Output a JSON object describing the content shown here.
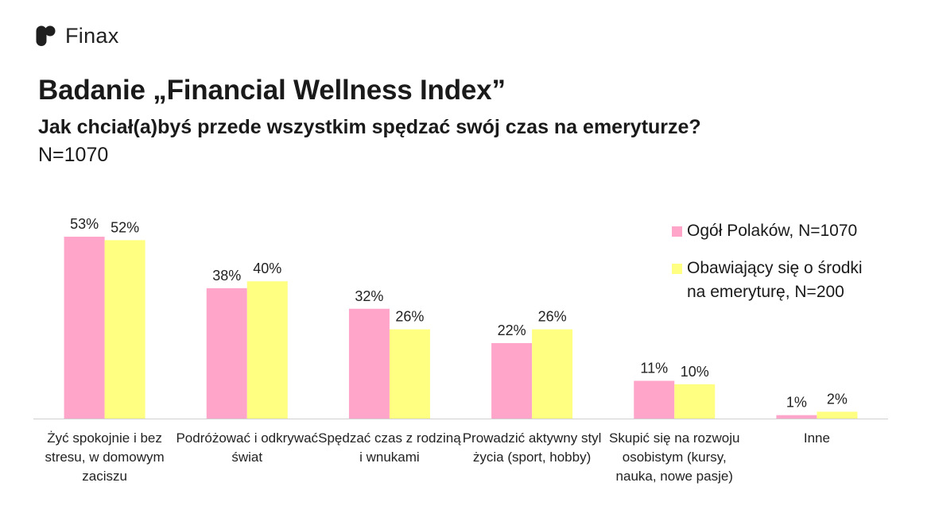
{
  "brand": {
    "name": "Finax",
    "logo_icon": "finax-logo-icon"
  },
  "header": {
    "title": "Badanie „Financial Wellness Index”",
    "subtitle": "Jak chciał(a)byś przede wszystkim spędzać swój czas na emeryturze?",
    "sample": "N=1070"
  },
  "chart_data": {
    "type": "bar",
    "categories": [
      "Żyć spokojnie i bez stresu, w domowym zaciszu",
      "Podróżować i odkrywać świat",
      "Spędzać czas z rodziną i wnukami",
      "Prowadzić aktywny styl życia (sport, hobby)",
      "Skupić się na rozwoju osobistym (kursy, nauka, nowe pasje)",
      "Inne"
    ],
    "series": [
      {
        "name": "Ogół Polaków, N=1070",
        "color": "#ffa5c9",
        "values": [
          53,
          38,
          32,
          22,
          11,
          1
        ]
      },
      {
        "name": "Obawiający się o środki na emeryturę, N=200",
        "color": "#ffff82",
        "values": [
          52,
          40,
          26,
          26,
          10,
          2
        ]
      }
    ],
    "value_suffix": "%",
    "ylim": [
      0,
      55
    ],
    "grid": false,
    "legend_position": "right"
  }
}
